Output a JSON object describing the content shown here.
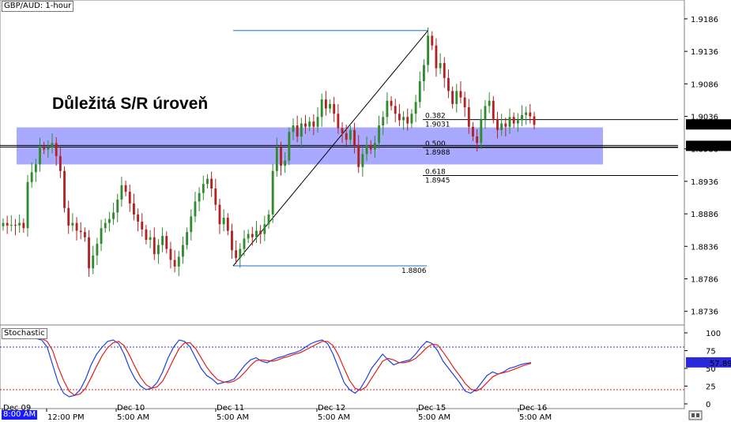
{
  "window": {
    "symbol_label": "GBP/AUD: 1-hour",
    "indicator_label": "Stochastic",
    "cursor_time": "8:00 AM"
  },
  "annotation": {
    "text": "Důležitá S/R úroveň"
  },
  "colors": {
    "bull_candle": "#2e8b2e",
    "bear_candle": "#b22222",
    "sr_zone": "#8c8cff",
    "fib_line": "#1f6fbf",
    "stoch_k": "#1f3fdf",
    "stoch_d": "#e01f1f",
    "stoch_upper": "#3333cc",
    "stoch_lower": "#cc2222",
    "price_badge": "#000000",
    "stoch_badge": "#2a2ad8"
  },
  "chart_data": [
    {
      "type": "candlestick",
      "title": "GBP/AUD: 1-hour",
      "ylim": [
        1.8715,
        1.9215
      ],
      "y_ticks": [
        "1.9186",
        "1.9136",
        "1.9086",
        "1.9036",
        "1.8986",
        "1.8936",
        "1.8886",
        "1.8836",
        "1.8786",
        "1.8736"
      ],
      "x_ticks": [
        "Dec 09",
        "12:00 PM",
        "Dec 10",
        "5:00 AM",
        "Dec 11",
        "5:00 AM",
        "Dec 12",
        "5:00 AM",
        "Dec 15",
        "5:00 AM",
        "Dec 16",
        "5:00 AM"
      ],
      "current_price": "1.9023",
      "sr_level": "1.8990",
      "sr_zone": [
        1.8962,
        1.9019
      ],
      "fibonacci": {
        "high": 1.9168,
        "low": "1.8806",
        "levels": [
          {
            "ratio": "0.382",
            "value": "1.9031"
          },
          {
            "ratio": "0.500",
            "value": "1.8988"
          },
          {
            "ratio": "0.618",
            "value": "1.8945"
          }
        ]
      },
      "closes": [
        1.8872,
        1.8868,
        1.8869,
        1.8868,
        1.8872,
        1.8864,
        1.8935,
        1.895,
        1.8962,
        1.899,
        1.8985,
        1.8988,
        1.8995,
        1.8975,
        1.8952,
        1.8895,
        1.8868,
        1.8872,
        1.886,
        1.8858,
        1.885,
        1.8802,
        1.8822,
        1.884,
        1.8864,
        1.8872,
        1.8878,
        1.8888,
        1.8908,
        1.893,
        1.892,
        1.8902,
        1.8885,
        1.8874,
        1.8862,
        1.8846,
        1.885,
        1.8824,
        1.8838,
        1.8852,
        1.8832,
        1.8815,
        1.8805,
        1.882,
        1.8838,
        1.8858,
        1.8882,
        1.8905,
        1.8918,
        1.8932,
        1.894,
        1.8925,
        1.89,
        1.887,
        1.888,
        1.886,
        1.883,
        1.8818,
        1.8832,
        1.8848,
        1.8855,
        1.885,
        1.886,
        1.8855,
        1.887,
        1.8885,
        1.8952,
        1.8988,
        1.896,
        1.8968,
        1.9012,
        1.9022,
        1.9005,
        1.9025,
        1.902,
        1.9028,
        1.902,
        1.9035,
        1.9062,
        1.9048,
        1.9055,
        1.904,
        1.9018,
        1.901,
        1.9,
        1.9015,
        1.8992,
        1.8958,
        1.8978,
        1.8992,
        1.8985,
        1.8995,
        1.9022,
        1.9035,
        1.906,
        1.9052,
        1.904,
        1.903,
        1.9035,
        1.9025,
        1.904,
        1.9058,
        1.909,
        1.9115,
        1.916,
        1.9145,
        1.911,
        1.9118,
        1.9095,
        1.9075,
        1.9055,
        1.9075,
        1.9065,
        1.905,
        1.902,
        1.9005,
        1.8995,
        1.9032,
        1.9052,
        1.906,
        1.9032,
        1.9015,
        1.9025,
        1.902,
        1.9035,
        1.9025,
        1.903,
        1.9038,
        1.9042,
        1.9036,
        1.9023
      ]
    },
    {
      "type": "line",
      "title": "Stochastic",
      "ylim": [
        0,
        100
      ],
      "y_ticks": [
        "100",
        "75",
        "50",
        "25",
        "0"
      ],
      "levels": [
        80,
        20
      ],
      "current_value": "57.89",
      "series": [
        {
          "color": "#1f3fdf",
          "values": [
            95,
            96,
            94,
            92,
            93,
            94,
            92,
            90,
            80,
            55,
            30,
            15,
            10,
            12,
            20,
            35,
            55,
            70,
            80,
            88,
            90,
            85,
            70,
            50,
            35,
            25,
            20,
            22,
            30,
            45,
            65,
            80,
            90,
            88,
            80,
            65,
            50,
            40,
            35,
            28,
            30,
            32,
            35,
            45,
            55,
            62,
            65,
            60,
            58,
            62,
            65,
            67,
            70,
            72,
            75,
            80,
            85,
            88,
            90,
            85,
            70,
            50,
            30,
            20,
            15,
            22,
            35,
            50,
            60,
            70,
            62,
            55,
            58,
            60,
            62,
            70,
            80,
            88,
            85,
            75,
            60,
            50,
            40,
            30,
            18,
            15,
            20,
            30,
            40,
            45,
            42,
            45,
            50,
            52,
            55,
            57,
            58
          ]
        },
        {
          "color": "#e01f1f",
          "values": [
            92,
            94,
            95,
            94,
            93,
            93,
            93,
            92,
            88,
            75,
            52,
            33,
            18,
            12,
            14,
            22,
            37,
            53,
            68,
            79,
            86,
            88,
            82,
            68,
            52,
            37,
            27,
            22,
            24,
            32,
            47,
            63,
            78,
            86,
            86,
            78,
            65,
            52,
            42,
            34,
            31,
            30,
            32,
            37,
            45,
            54,
            61,
            62,
            61,
            60,
            62,
            65,
            67,
            70,
            72,
            76,
            80,
            84,
            88,
            88,
            82,
            68,
            50,
            33,
            22,
            19,
            24,
            36,
            48,
            60,
            64,
            62,
            58,
            58,
            60,
            64,
            71,
            79,
            84,
            83,
            73,
            62,
            50,
            40,
            29,
            21,
            18,
            22,
            30,
            38,
            42,
            44,
            46,
            49,
            52,
            55,
            57
          ]
        }
      ]
    }
  ]
}
